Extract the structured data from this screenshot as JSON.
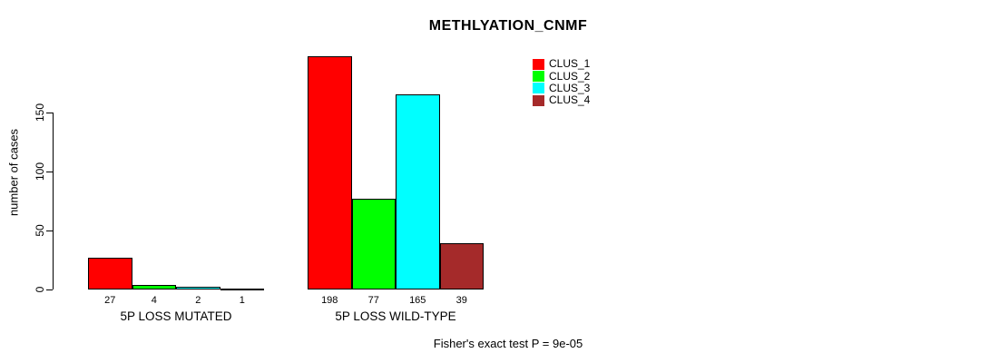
{
  "chart_data": {
    "type": "bar",
    "title": "METHLYATION_CNMF",
    "ylabel": "number of cases",
    "ylim": [
      0,
      205
    ],
    "yticks": [
      0,
      50,
      100,
      150
    ],
    "grid": false,
    "legend_position": "top-right-inside",
    "legend": [
      {
        "label": "CLUS_1",
        "color": "#ff0000"
      },
      {
        "label": "CLUS_2",
        "color": "#00ff00"
      },
      {
        "label": "CLUS_3",
        "color": "#00ffff"
      },
      {
        "label": "CLUS_4",
        "color": "#a52a2a"
      }
    ],
    "groups": [
      {
        "label": "5P LOSS MUTATED",
        "values": [
          27,
          4,
          2,
          1
        ]
      },
      {
        "label": "5P LOSS WILD-TYPE",
        "values": [
          198,
          77,
          165,
          39
        ]
      }
    ],
    "annotation": "Fisher's exact test P = 9e-05"
  }
}
